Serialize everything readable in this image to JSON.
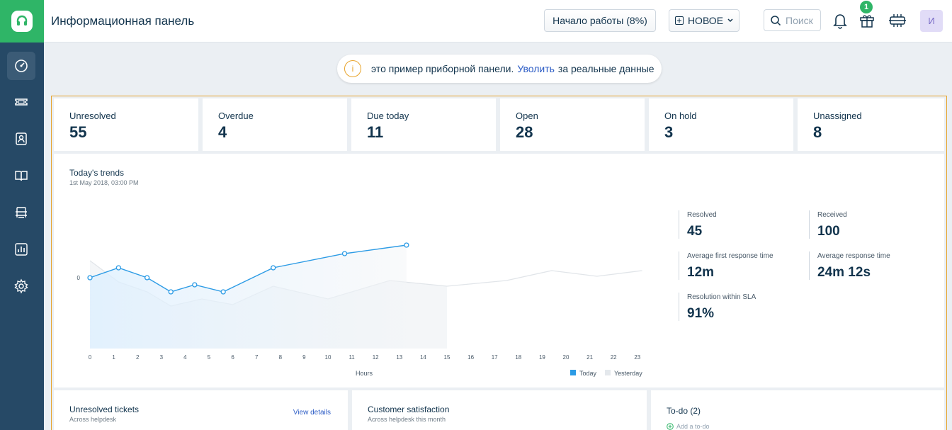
{
  "header": {
    "title": "Информационная панель",
    "start_button": "Начало работы (8%)",
    "new_button": "НОВОЕ",
    "search_placeholder": "Поиск",
    "gift_badge": "1",
    "avatar_initial": "И"
  },
  "banner": {
    "text_before": "это пример приборной панели.",
    "link": "Уволить",
    "text_after": "за реальные данные"
  },
  "summary_cards": [
    {
      "label": "Unresolved",
      "value": "55"
    },
    {
      "label": "Overdue",
      "value": "4"
    },
    {
      "label": "Due today",
      "value": "11"
    },
    {
      "label": "Open",
      "value": "28"
    },
    {
      "label": "On hold",
      "value": "3"
    },
    {
      "label": "Unassigned",
      "value": "8"
    }
  ],
  "trends": {
    "title": "Today's trends",
    "subtitle": "1st May 2018, 03:00 PM",
    "stats": [
      {
        "label": "Resolved",
        "value": "45"
      },
      {
        "label": "Received",
        "value": "100"
      },
      {
        "label": "Average first response time",
        "value": "12m"
      },
      {
        "label": "Average response time",
        "value": "24m 12s"
      },
      {
        "label": "Resolution within SLA",
        "value": "91%"
      }
    ]
  },
  "chart_data": {
    "type": "line",
    "xlabel": "Hours",
    "x": [
      0,
      1,
      2,
      3,
      4,
      5,
      6,
      7,
      8,
      9,
      10,
      11,
      12,
      13,
      14,
      15,
      16,
      17,
      18,
      19,
      20,
      21,
      22,
      23
    ],
    "y_tick": "0",
    "series": [
      {
        "name": "Today",
        "color": "#2c9be5",
        "points": [
          [
            0,
            0
          ],
          [
            1.2,
            0.7
          ],
          [
            2.4,
            0
          ],
          [
            3.4,
            -1.0
          ],
          [
            4.4,
            -0.5
          ],
          [
            5.6,
            -1.0
          ],
          [
            7.7,
            0.7
          ],
          [
            10.7,
            1.7
          ],
          [
            13.3,
            2.3
          ]
        ]
      },
      {
        "name": "Yesterday",
        "color": "#e4e8ec",
        "points": [
          [
            0,
            1.2
          ],
          [
            1.2,
            -0.3
          ],
          [
            2.4,
            -1.0
          ],
          [
            3.4,
            -2.0
          ],
          [
            4.7,
            -1.5
          ],
          [
            6,
            -1.9
          ],
          [
            7.7,
            -0.6
          ],
          [
            10,
            -1.5
          ],
          [
            12.6,
            -0.2
          ],
          [
            15,
            -0.6
          ],
          [
            17.5,
            -0.2
          ],
          [
            19.4,
            0.5
          ],
          [
            21.3,
            0.1
          ],
          [
            23.2,
            0.5
          ]
        ]
      }
    ],
    "legend": [
      {
        "label": "Today",
        "color": "#2c9be5"
      },
      {
        "label": "Yesterday",
        "color": "#e4e8ec"
      }
    ],
    "legend_position": "bottom-right",
    "grid": false
  },
  "panels": {
    "unresolved": {
      "title": "Unresolved tickets",
      "subtitle": "Across helpdesk",
      "link": "View details"
    },
    "csat": {
      "title": "Customer satisfaction",
      "subtitle": "Across helpdesk this month"
    },
    "todo": {
      "title": "To-do (2)",
      "add": "Add a to-do"
    }
  }
}
